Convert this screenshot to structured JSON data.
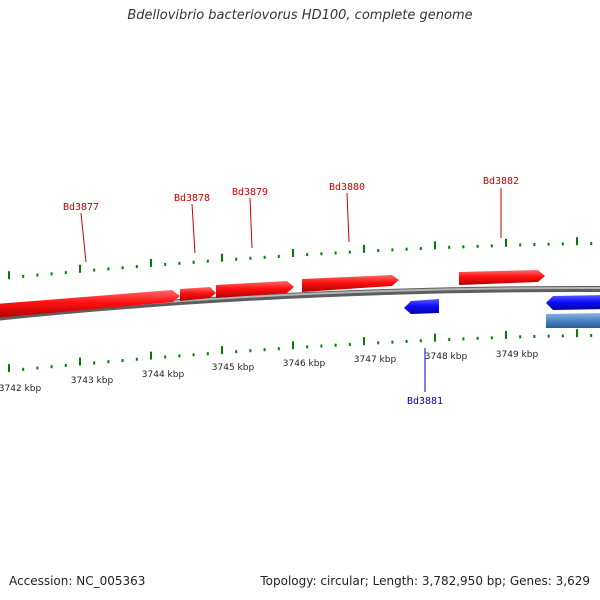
{
  "title": "Bdellovibrio bacteriovorus HD100, complete genome",
  "footer": {
    "accession": "Accession: NC_005363",
    "summary": "Topology: circular; Length: 3,782,950 bp; Genes: 3,629"
  },
  "colors": {
    "forward_gene": "#ff0000",
    "reverse_gene": "#0000ff",
    "reverse_gene_alt": "#4a86c8",
    "backbone": "#888888",
    "tick": "#008000"
  },
  "tick_labels": [
    "3742 kbp",
    "3743 kbp",
    "3744 kbp",
    "3745 kbp",
    "3746 kbp",
    "3747 kbp",
    "3748 kbp",
    "3749 kbp"
  ],
  "genes": [
    {
      "label": "Bd3877",
      "strand": "forward"
    },
    {
      "label": "Bd3878",
      "strand": "forward"
    },
    {
      "label": "Bd3879",
      "strand": "forward"
    },
    {
      "label": "Bd3880",
      "strand": "forward"
    },
    {
      "label": "Bd3881",
      "strand": "reverse"
    },
    {
      "label": "Bd3882",
      "strand": "forward"
    }
  ]
}
